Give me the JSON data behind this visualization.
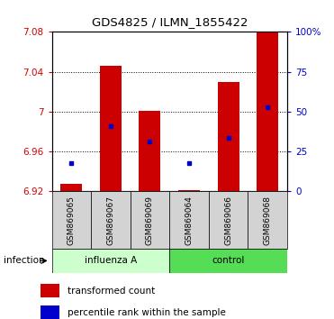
{
  "title": "GDS4825 / ILMN_1855422",
  "samples": [
    "GSM869065",
    "GSM869067",
    "GSM869069",
    "GSM869064",
    "GSM869066",
    "GSM869068"
  ],
  "group_labels": [
    "influenza A",
    "control"
  ],
  "bar_bottom": 6.92,
  "red_tops": [
    6.928,
    7.046,
    7.001,
    6.921,
    7.03,
    7.08
  ],
  "blue_y": [
    6.948,
    6.985,
    6.97,
    6.948,
    6.974,
    7.004
  ],
  "ylim": [
    6.92,
    7.08
  ],
  "yticks": [
    6.92,
    6.96,
    7.0,
    7.04,
    7.08
  ],
  "ytick_labels": [
    "6.92",
    "6.96",
    "7",
    "7.04",
    "7.08"
  ],
  "right_yticks": [
    0,
    25,
    50,
    75,
    100
  ],
  "right_ytick_labels": [
    "0",
    "25",
    "50",
    "75",
    "100%"
  ],
  "bar_color": "#cc0000",
  "dot_color": "#0000cc",
  "bar_width": 0.55,
  "left_axis_color": "#cc0000",
  "right_axis_color": "#0000cc",
  "infection_label": "infection",
  "legend_red_label": "transformed count",
  "legend_blue_label": "percentile rank within the sample",
  "influenza_color": "#ccffcc",
  "control_color": "#55dd55",
  "gray_color": "#d3d3d3"
}
